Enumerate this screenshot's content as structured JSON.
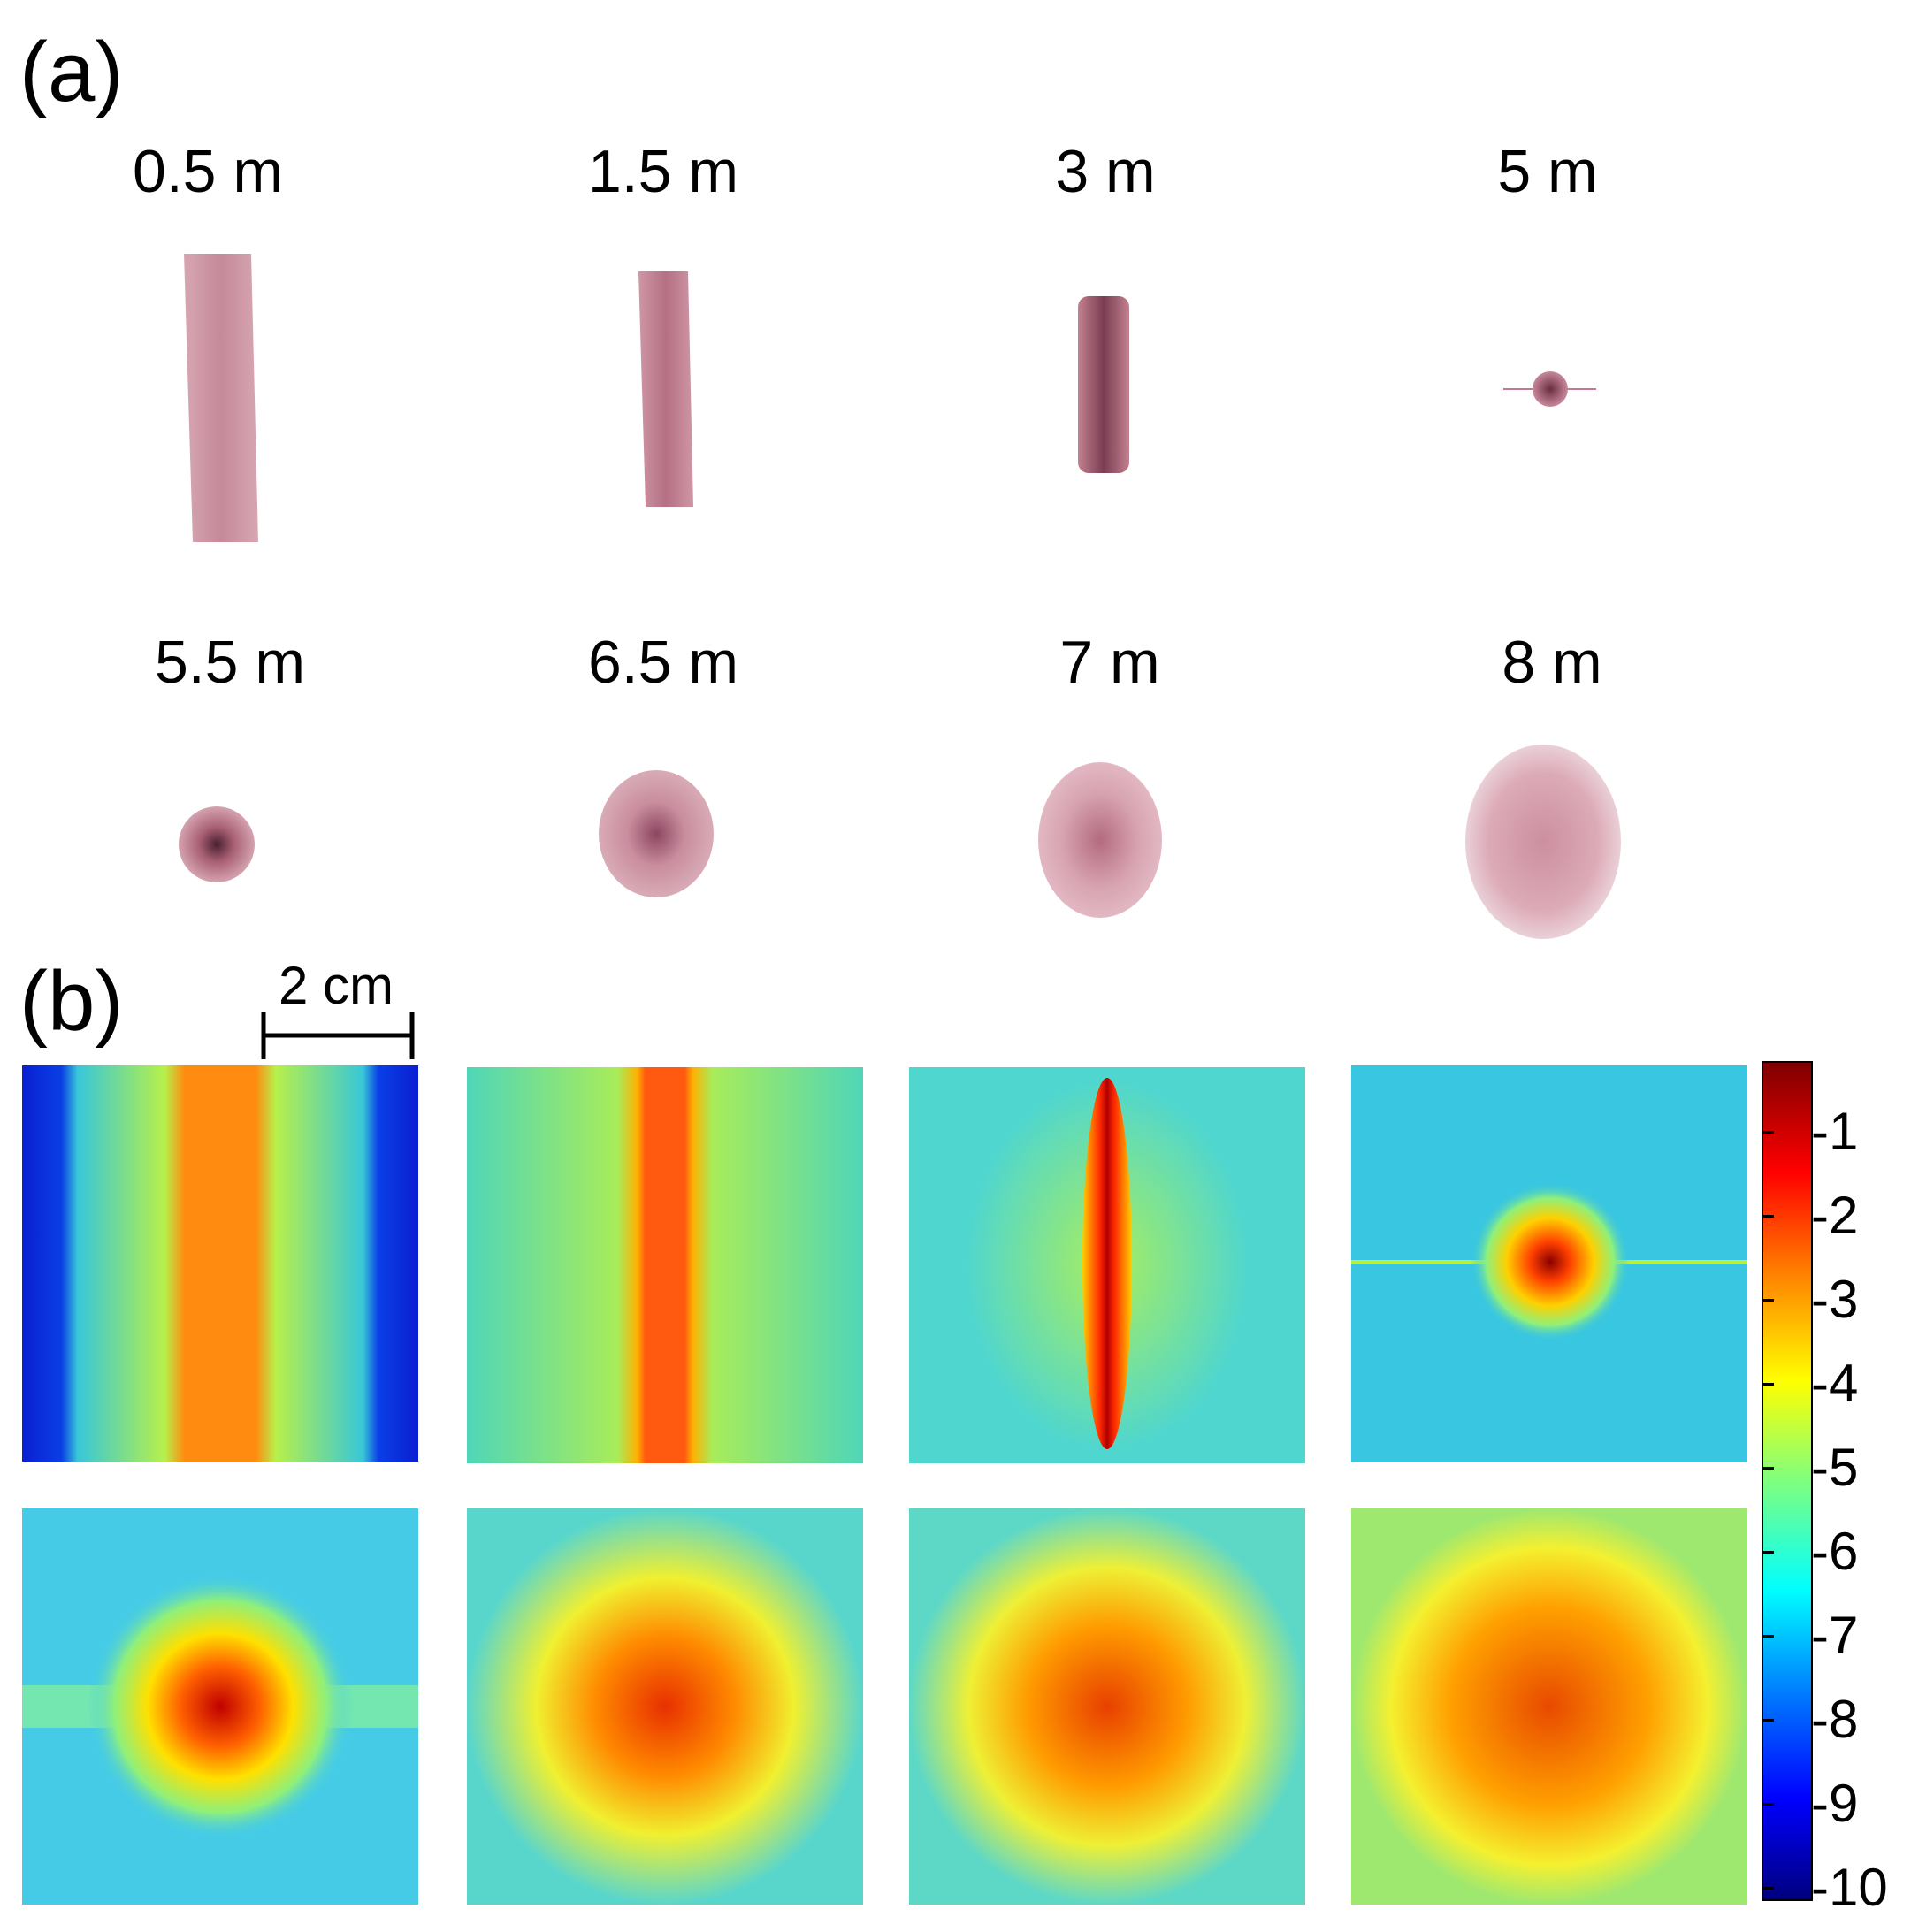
{
  "panels": {
    "a_label": "(a)",
    "b_label": "(b)"
  },
  "distances": [
    "0.5 m",
    "1.5 m",
    "3 m",
    "5 m",
    "5.5 m",
    "6.5 m",
    "7 m",
    "8 m"
  ],
  "scale_bar": {
    "label": "2 cm"
  },
  "colorbar": {
    "ticks": [
      "-1",
      "-2",
      "-3",
      "-4",
      "-5",
      "-6",
      "-7",
      "-8",
      "-9",
      "-10"
    ],
    "colors": [
      "#00007f",
      "#0000ff",
      "#007fff",
      "#00ffff",
      "#7fff7f",
      "#ffff00",
      "#ff7f00",
      "#ff0000",
      "#7f0000"
    ]
  },
  "colors": {
    "photo_tint": "#c88a9a",
    "background_map": "#4fd6cf"
  }
}
